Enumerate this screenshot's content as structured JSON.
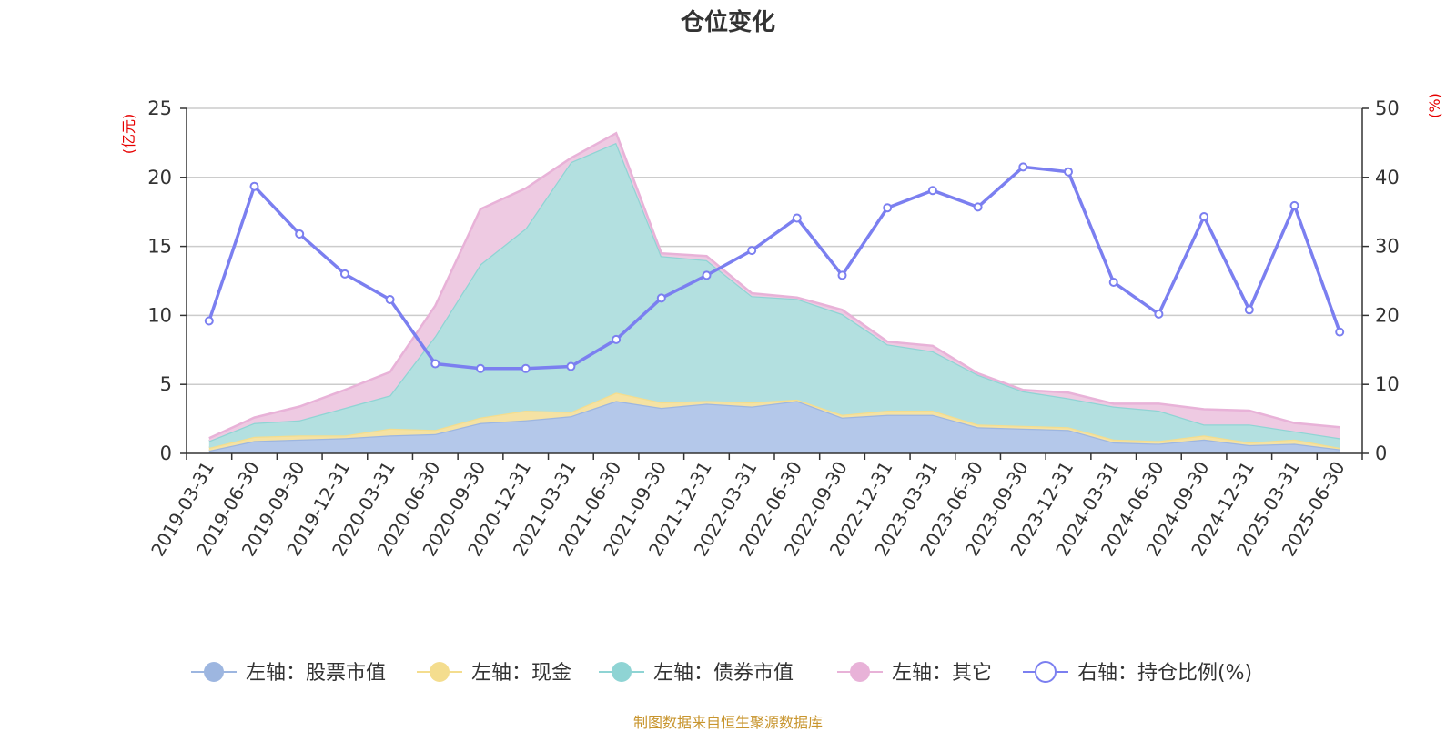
{
  "chart_data": {
    "type": "area",
    "title": "仓位变化",
    "y_left_label": "(亿元)",
    "y_right_label": "(%)",
    "y_left_range": [
      0,
      25
    ],
    "y_right_range": [
      0,
      50
    ],
    "y_left_ticks": [
      "0",
      "5",
      "10",
      "15",
      "20",
      "25"
    ],
    "y_right_ticks": [
      "0",
      "10",
      "20",
      "30",
      "40",
      "50"
    ],
    "grid": true,
    "legend_position": "bottom",
    "categories": [
      "2019-03-31",
      "2019-06-30",
      "2019-09-30",
      "2019-12-31",
      "2020-03-31",
      "2020-06-30",
      "2020-09-30",
      "2020-12-31",
      "2021-03-31",
      "2021-06-30",
      "2021-09-30",
      "2021-12-31",
      "2022-03-31",
      "2022-06-30",
      "2022-09-30",
      "2022-12-31",
      "2023-03-31",
      "2023-06-30",
      "2023-09-30",
      "2023-12-31",
      "2024-03-31",
      "2024-06-30",
      "2024-09-30",
      "2024-12-31",
      "2025-03-31",
      "2025-06-30"
    ],
    "series": [
      {
        "name": "左轴：股票市值",
        "axis": "left",
        "stack": true,
        "color": "#9db6e0",
        "fill": "#b4c8ea",
        "values": [
          0.2,
          0.9,
          1.0,
          1.1,
          1.3,
          1.4,
          2.2,
          2.4,
          2.7,
          3.8,
          3.3,
          3.6,
          3.4,
          3.8,
          2.6,
          2.8,
          2.8,
          1.9,
          1.8,
          1.7,
          0.8,
          0.7,
          1.0,
          0.6,
          0.7,
          0.3
        ]
      },
      {
        "name": "左轴：现金",
        "axis": "left",
        "stack": true,
        "color": "#f4dd8e",
        "fill": "#f5e2a3",
        "values": [
          0.2,
          0.3,
          0.3,
          0.2,
          0.5,
          0.3,
          0.4,
          0.7,
          0.3,
          0.6,
          0.4,
          0.2,
          0.3,
          0.1,
          0.2,
          0.3,
          0.3,
          0.2,
          0.2,
          0.2,
          0.2,
          0.2,
          0.3,
          0.2,
          0.3,
          0.1
        ]
      },
      {
        "name": "左轴：债券市值",
        "axis": "left",
        "stack": true,
        "color": "#8fd4d4",
        "fill": "#b3e0e0",
        "values": [
          0.5,
          1.0,
          1.1,
          2.0,
          2.4,
          6.8,
          11.1,
          13.2,
          18.1,
          18.1,
          10.6,
          10.2,
          7.7,
          7.3,
          7.3,
          4.8,
          4.3,
          3.6,
          2.5,
          2.1,
          2.4,
          2.2,
          0.8,
          1.3,
          0.6,
          0.7
        ]
      },
      {
        "name": "左轴：其它",
        "axis": "left",
        "stack": true,
        "color": "#e8b2d8",
        "fill": "#eecae2",
        "values": [
          0.2,
          0.4,
          1.0,
          1.3,
          1.7,
          2.2,
          4.0,
          2.9,
          0.3,
          0.7,
          0.2,
          0.3,
          0.2,
          0.1,
          0.3,
          0.2,
          0.4,
          0.1,
          0.1,
          0.4,
          0.2,
          0.5,
          1.1,
          1.0,
          0.6,
          0.8
        ]
      },
      {
        "name": "右轴：持仓比例(%)",
        "axis": "right",
        "stack": false,
        "color": "#7b7ff0",
        "values": [
          19.2,
          38.7,
          31.8,
          26.0,
          22.3,
          13.0,
          12.3,
          12.3,
          12.6,
          16.5,
          22.5,
          25.8,
          29.4,
          34.1,
          25.8,
          35.6,
          38.1,
          35.7,
          41.5,
          40.8,
          24.8,
          20.2,
          34.3,
          20.8,
          35.9,
          17.6
        ]
      }
    ]
  },
  "source_note": "制图数据来自恒生聚源数据库"
}
